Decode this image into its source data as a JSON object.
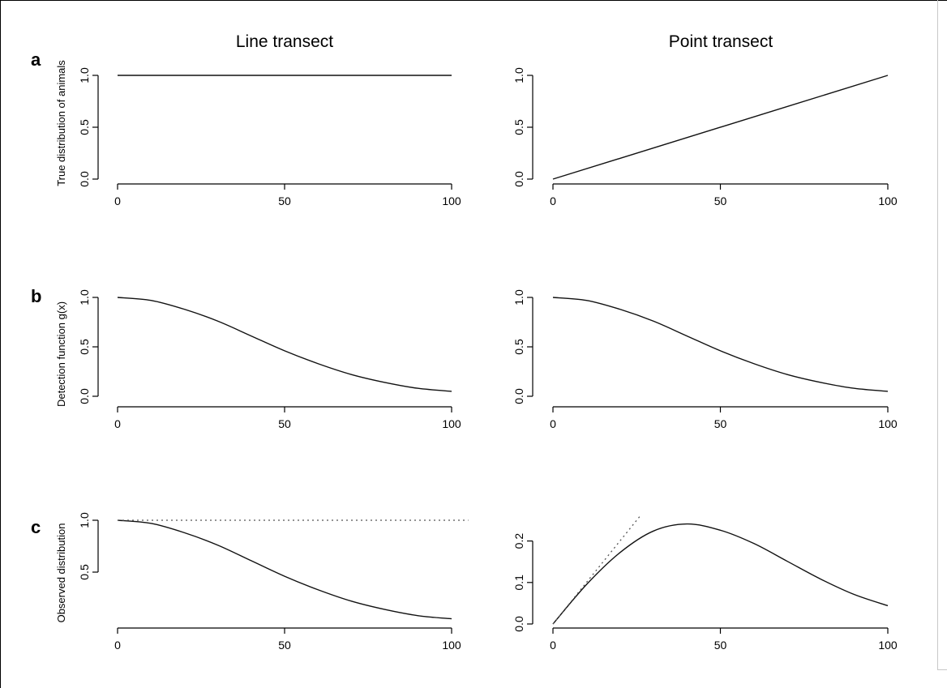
{
  "chart_data": {
    "type": "line",
    "column_titles": [
      "Line transect",
      "Point transect"
    ],
    "row_letters": [
      "a",
      "b",
      "c"
    ],
    "row_ylabels": [
      "True distribution of animals",
      "Detection function g(x)",
      "Observed distribution"
    ],
    "panels": [
      {
        "id": "a-line",
        "row": 0,
        "col": 0,
        "xlim": [
          0,
          100
        ],
        "ylim": [
          0,
          1
        ],
        "xticks": [
          0,
          50,
          100
        ],
        "yticks": [
          0,
          0.5,
          1
        ],
        "ytick_labels": [
          "0.0",
          "0.5",
          "1.0"
        ],
        "series": [
          {
            "style": "solid",
            "x": [
              0,
              100
            ],
            "y": [
              1,
              1
            ]
          }
        ]
      },
      {
        "id": "a-point",
        "row": 0,
        "col": 1,
        "xlim": [
          0,
          100
        ],
        "ylim": [
          0,
          1
        ],
        "xticks": [
          0,
          50,
          100
        ],
        "yticks": [
          0,
          0.5,
          1
        ],
        "ytick_labels": [
          "0.0",
          "0.5",
          "1.0"
        ],
        "series": [
          {
            "style": "solid",
            "x": [
              0,
              100
            ],
            "y": [
              0,
              1
            ]
          }
        ]
      },
      {
        "id": "b-line",
        "row": 1,
        "col": 0,
        "xlim": [
          0,
          100
        ],
        "ylim": [
          0,
          1
        ],
        "xticks": [
          0,
          50,
          100
        ],
        "yticks": [
          0,
          0.5,
          1
        ],
        "ytick_labels": [
          "0.0",
          "0.5",
          "1.0"
        ],
        "series": [
          {
            "style": "solid",
            "x": [
              0,
              10,
              20,
              30,
              40,
              50,
              60,
              70,
              80,
              90,
              100
            ],
            "y": [
              1.0,
              0.97,
              0.88,
              0.76,
              0.61,
              0.46,
              0.33,
              0.22,
              0.14,
              0.08,
              0.05
            ]
          }
        ]
      },
      {
        "id": "b-point",
        "row": 1,
        "col": 1,
        "xlim": [
          0,
          100
        ],
        "ylim": [
          0,
          1
        ],
        "xticks": [
          0,
          50,
          100
        ],
        "yticks": [
          0,
          0.5,
          1
        ],
        "ytick_labels": [
          "0.0",
          "0.5",
          "1.0"
        ],
        "series": [
          {
            "style": "solid",
            "x": [
              0,
              10,
              20,
              30,
              40,
              50,
              60,
              70,
              80,
              90,
              100
            ],
            "y": [
              1.0,
              0.97,
              0.88,
              0.76,
              0.61,
              0.46,
              0.33,
              0.22,
              0.14,
              0.08,
              0.05
            ]
          }
        ]
      },
      {
        "id": "c-line",
        "row": 2,
        "col": 0,
        "xlim": [
          0,
          100
        ],
        "ylim": [
          0,
          1
        ],
        "xticks": [
          0,
          50,
          100
        ],
        "yticks": [
          0.5,
          1
        ],
        "ytick_labels": [
          "0.5",
          "1.0"
        ],
        "series": [
          {
            "style": "solid",
            "x": [
              0,
              10,
              20,
              30,
              40,
              50,
              60,
              70,
              80,
              90,
              100
            ],
            "y": [
              1.0,
              0.97,
              0.88,
              0.76,
              0.61,
              0.46,
              0.33,
              0.22,
              0.14,
              0.08,
              0.05
            ]
          },
          {
            "style": "dotted",
            "x": [
              0,
              100
            ],
            "y": [
              1,
              1
            ]
          }
        ]
      },
      {
        "id": "c-point",
        "row": 2,
        "col": 1,
        "xlim": [
          0,
          100
        ],
        "ylim": [
          0,
          0.25
        ],
        "xticks": [
          0,
          50,
          100
        ],
        "yticks": [
          0,
          0.1,
          0.2
        ],
        "ytick_labels": [
          "0.0",
          "0.1",
          "0.2"
        ],
        "series": [
          {
            "style": "solid",
            "x": [
              0,
              10,
              20,
              30,
              40,
              50,
              60,
              70,
              80,
              90,
              100
            ],
            "y": [
              0.0,
              0.095,
              0.172,
              0.224,
              0.241,
              0.226,
              0.194,
              0.151,
              0.108,
              0.071,
              0.044
            ]
          },
          {
            "style": "dotted",
            "x": [
              0,
              26
            ],
            "y": [
              0,
              0.26
            ]
          }
        ]
      }
    ]
  }
}
